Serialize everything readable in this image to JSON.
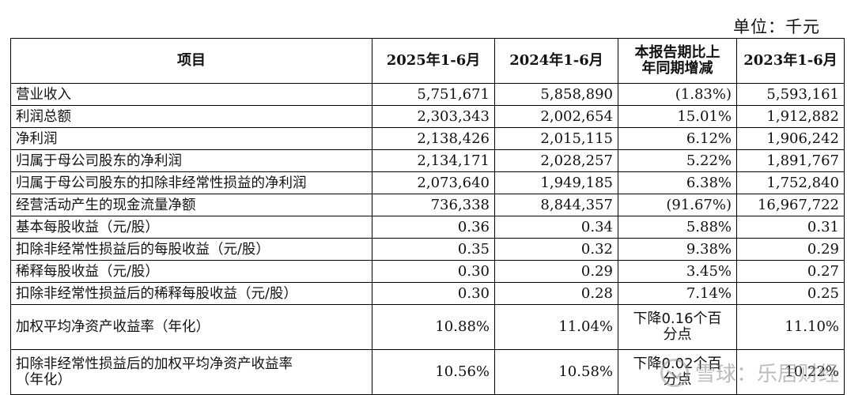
{
  "unit_label": "单位：千元",
  "headers": [
    "项目",
    "2025年1-6月",
    "2024年1-6月",
    "本报告期比上\n年同期增减",
    "2023年1-6月"
  ],
  "rows": [
    {
      "item": "营业收入",
      "y2025": "5,751,671",
      "y2024": "5,858,890",
      "change": "(1.83%)",
      "y2023": "5,593,161"
    },
    {
      "item": "利润总额",
      "y2025": "2,303,343",
      "y2024": "2,002,654",
      "change": "15.01%",
      "y2023": "1,912,882"
    },
    {
      "item": "净利润",
      "y2025": "2,138,426",
      "y2024": "2,015,115",
      "change": "6.12%",
      "y2023": "1,906,242"
    },
    {
      "item": "归属于母公司股东的净利润",
      "y2025": "2,134,171",
      "y2024": "2,028,257",
      "change": "5.22%",
      "y2023": "1,891,767"
    },
    {
      "item": "归属于母公司股东的扣除非经常性损益的净利润",
      "y2025": "2,073,640",
      "y2024": "1,949,185",
      "change": "6.38%",
      "y2023": "1,752,840"
    },
    {
      "item": "经营活动产生的现金流量净额",
      "y2025": "736,338",
      "y2024": "8,844,357",
      "change": "(91.67%)",
      "y2023": "16,967,722"
    },
    {
      "item": "基本每股收益（元/股）",
      "y2025": "0.36",
      "y2024": "0.34",
      "change": "5.88%",
      "y2023": "0.31"
    },
    {
      "item": "扣除非经常性损益后的每股收益（元/股）",
      "y2025": "0.35",
      "y2024": "0.32",
      "change": "9.38%",
      "y2023": "0.29"
    },
    {
      "item": "稀释每股收益（元/股）",
      "y2025": "0.30",
      "y2024": "0.29",
      "change": "3.45%",
      "y2023": "0.27"
    },
    {
      "item": "扣除非经常性损益后的稀释每股收益（元/股）",
      "y2025": "0.30",
      "y2024": "0.28",
      "change": "7.14%",
      "y2023": "0.25"
    },
    {
      "item": "加权平均净资产收益率（年化）",
      "y2025": "10.88%",
      "y2024": "11.04%",
      "change": "下降0.16个百\n分点",
      "y2023": "11.10%"
    },
    {
      "item": "扣除非经常性损益后的加权平均净资产收益率\n（年化）",
      "y2025": "10.56%",
      "y2024": "10.58%",
      "change": "下降0.02个百\n分点",
      "y2023": "10.22%"
    }
  ],
  "watermark": {
    "text": "雪球：乐居财经",
    "icon": "xueqiu-logo-icon"
  }
}
